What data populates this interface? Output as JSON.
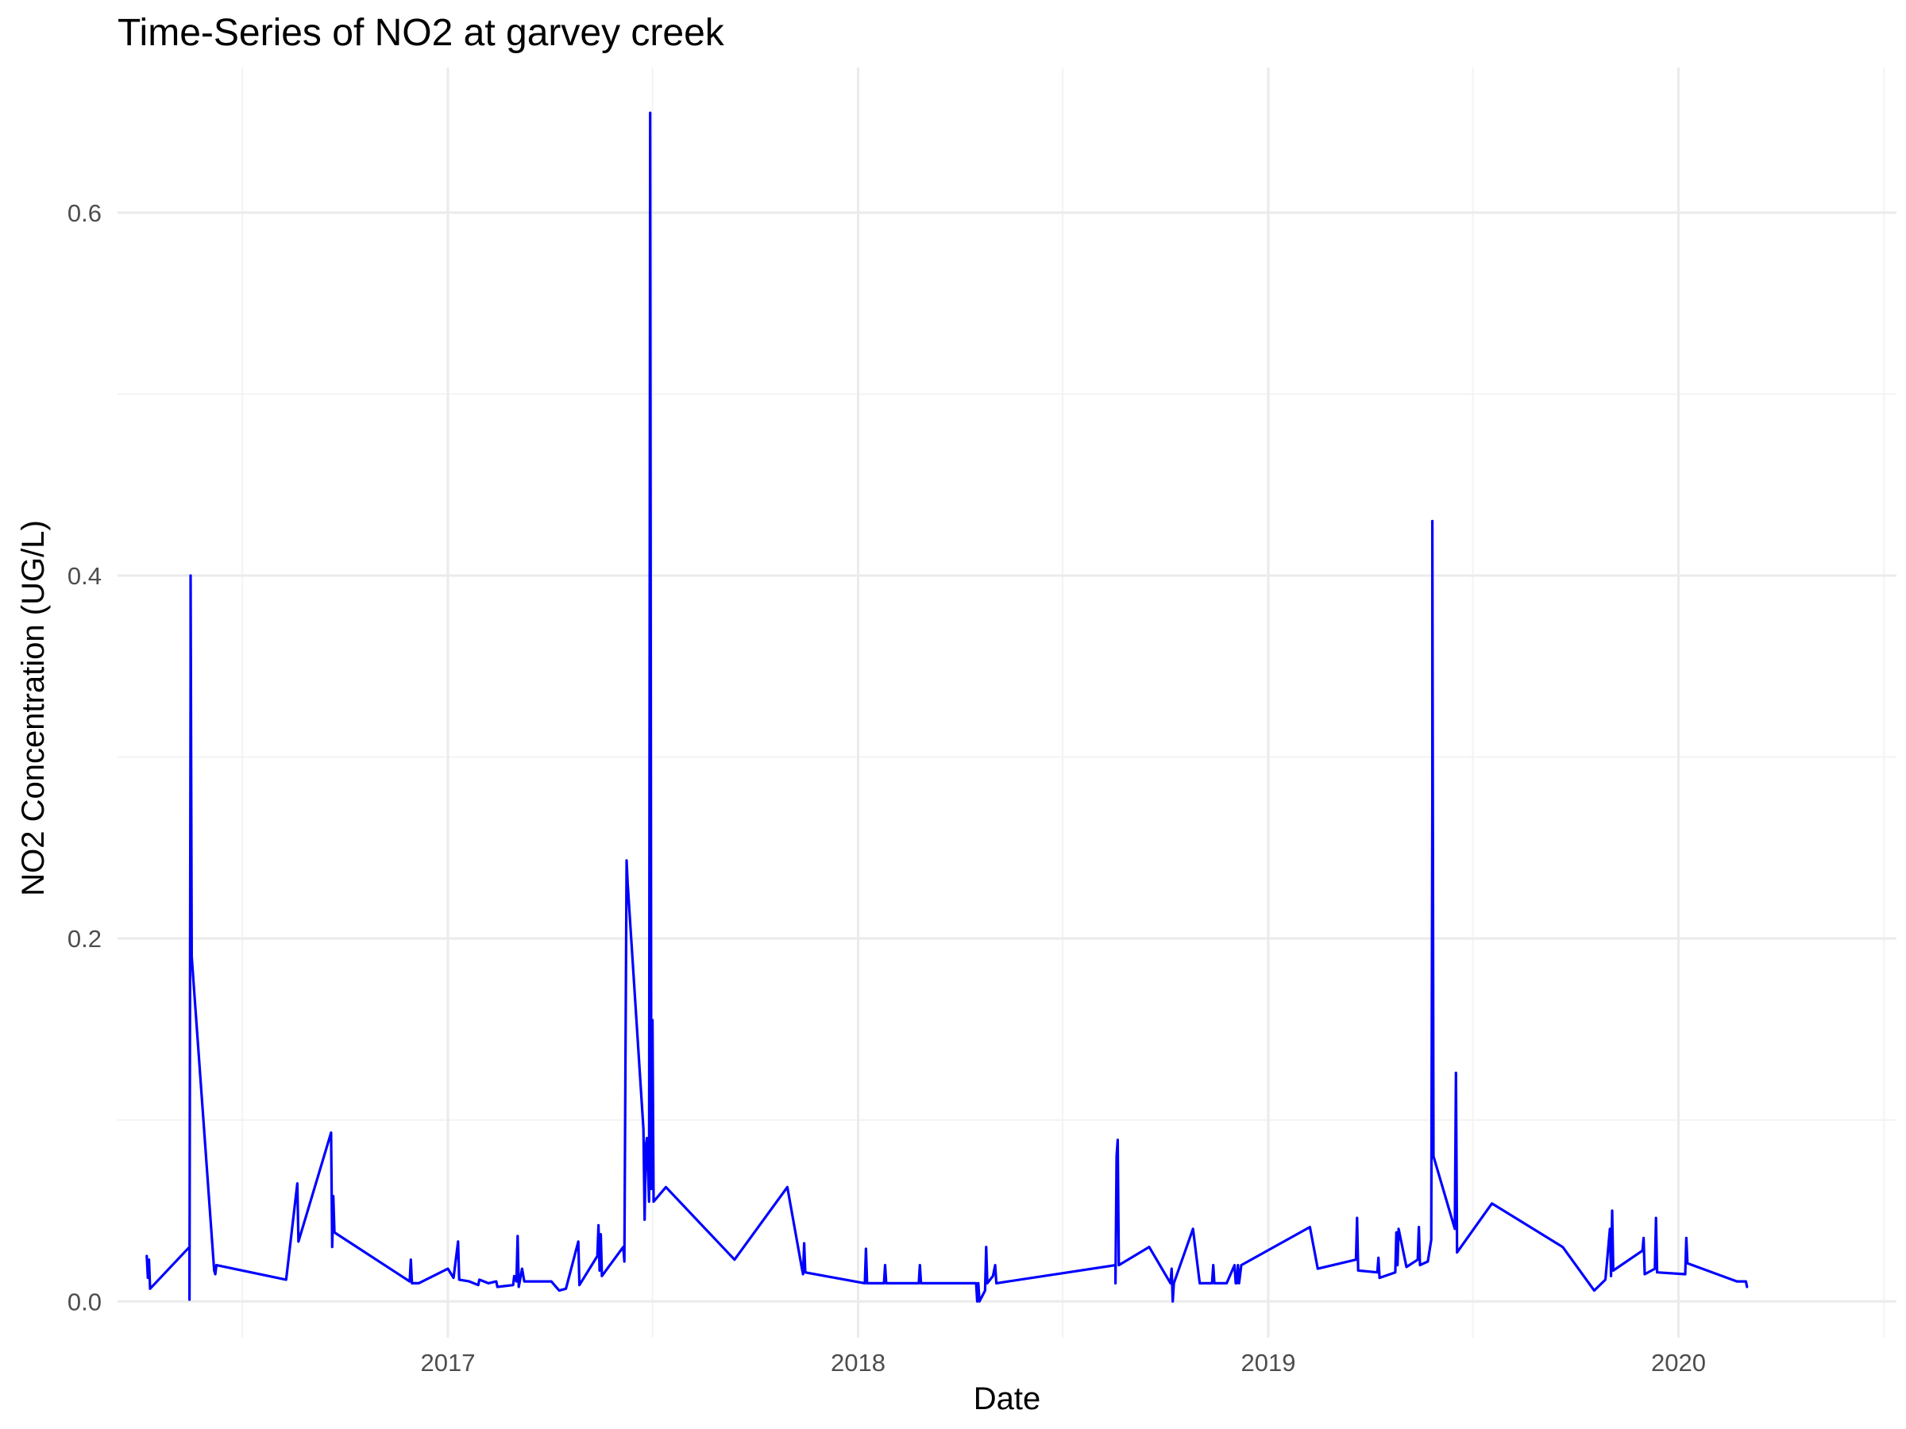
{
  "chart_data": {
    "type": "line",
    "title": "Time-Series of NO2 at garvey creek",
    "xlabel": "Date",
    "ylabel": "NO2 Concentration (UG/L)",
    "xlim": [
      "2016-03-13",
      "2020-07-13"
    ],
    "ylim": [
      -0.02,
      0.68
    ],
    "x_ticks": [
      "2017-01-01",
      "2018-01-01",
      "2019-01-01",
      "2020-01-01"
    ],
    "x_tick_labels": [
      "2017",
      "2018",
      "2019",
      "2020"
    ],
    "y_ticks": [
      0.0,
      0.2,
      0.4,
      0.6
    ],
    "y_tick_labels": [
      "0.0",
      "0.2",
      "0.4",
      "0.6"
    ],
    "grid": true,
    "line_color": "#0000FF",
    "series": [
      {
        "points": [
          [
            "2016-04-08",
            0.025
          ],
          [
            "2016-04-09",
            0.013
          ],
          [
            "2016-04-10",
            0.023
          ],
          [
            "2016-04-11",
            0.007
          ],
          [
            "2016-05-16",
            0.03
          ],
          [
            "2016-05-16",
            0.001
          ],
          [
            "2016-05-17",
            0.345
          ],
          [
            "2016-05-17",
            0.4
          ],
          [
            "2016-05-18",
            0.19
          ],
          [
            "2016-06-07",
            0.017
          ],
          [
            "2016-06-08",
            0.015
          ],
          [
            "2016-06-09",
            0.02
          ],
          [
            "2016-08-10",
            0.012
          ],
          [
            "2016-08-20",
            0.065
          ],
          [
            "2016-08-21",
            0.033
          ],
          [
            "2016-09-19",
            0.093
          ],
          [
            "2016-09-20",
            0.03
          ],
          [
            "2016-09-21",
            0.058
          ],
          [
            "2016-09-22",
            0.038
          ],
          [
            "2016-11-28",
            0.011
          ],
          [
            "2016-11-29",
            0.023
          ],
          [
            "2016-11-30",
            0.01
          ],
          [
            "2016-12-06",
            0.01
          ],
          [
            "2017-01-01",
            0.018
          ],
          [
            "2017-01-06",
            0.013
          ],
          [
            "2017-01-10",
            0.033
          ],
          [
            "2017-01-11",
            0.012
          ],
          [
            "2017-01-20",
            0.011
          ],
          [
            "2017-01-28",
            0.009
          ],
          [
            "2017-01-29",
            0.012
          ],
          [
            "2017-02-06",
            0.01
          ],
          [
            "2017-02-13",
            0.011
          ],
          [
            "2017-02-14",
            0.008
          ],
          [
            "2017-02-28",
            0.009
          ],
          [
            "2017-03-01",
            0.014
          ],
          [
            "2017-03-03",
            0.011
          ],
          [
            "2017-03-04",
            0.036
          ],
          [
            "2017-03-05",
            0.008
          ],
          [
            "2017-03-08",
            0.018
          ],
          [
            "2017-03-10",
            0.011
          ],
          [
            "2017-04-03",
            0.011
          ],
          [
            "2017-04-10",
            0.006
          ],
          [
            "2017-04-16",
            0.007
          ],
          [
            "2017-04-27",
            0.033
          ],
          [
            "2017-04-28",
            0.009
          ],
          [
            "2017-05-14",
            0.025
          ],
          [
            "2017-05-15",
            0.042
          ],
          [
            "2017-05-16",
            0.017
          ],
          [
            "2017-05-17",
            0.037
          ],
          [
            "2017-05-18",
            0.014
          ],
          [
            "2017-06-06",
            0.03
          ],
          [
            "2017-06-07",
            0.022
          ],
          [
            "2017-06-08",
            0.135
          ],
          [
            "2017-06-09",
            0.243
          ],
          [
            "2017-06-10",
            0.23
          ],
          [
            "2017-06-24",
            0.095
          ],
          [
            "2017-06-25",
            0.045
          ],
          [
            "2017-06-26",
            0.085
          ],
          [
            "2017-06-27",
            0.09
          ],
          [
            "2017-06-29",
            0.055
          ],
          [
            "2017-06-30",
            0.655
          ],
          [
            "2017-07-01",
            0.062
          ],
          [
            "2017-07-02",
            0.155
          ],
          [
            "2017-07-03",
            0.055
          ],
          [
            "2017-07-14",
            0.063
          ],
          [
            "2017-09-13",
            0.023
          ],
          [
            "2017-10-30",
            0.063
          ],
          [
            "2017-11-12",
            0.018
          ],
          [
            "2017-11-13",
            0.015
          ],
          [
            "2017-11-14",
            0.032
          ],
          [
            "2017-11-15",
            0.016
          ],
          [
            "2018-01-07",
            0.01
          ],
          [
            "2018-01-08",
            0.029
          ],
          [
            "2018-01-09",
            0.01
          ],
          [
            "2018-01-24",
            0.01
          ],
          [
            "2018-01-25",
            0.02
          ],
          [
            "2018-01-26",
            0.01
          ],
          [
            "2018-02-24",
            0.01
          ],
          [
            "2018-02-25",
            0.02
          ],
          [
            "2018-02-26",
            0.01
          ],
          [
            "2018-04-16",
            0.01
          ],
          [
            "2018-04-17",
            0.0
          ],
          [
            "2018-04-18",
            0.01
          ],
          [
            "2018-04-19",
            0.0
          ],
          [
            "2018-04-24",
            0.006
          ],
          [
            "2018-04-25",
            0.03
          ],
          [
            "2018-04-26",
            0.01
          ],
          [
            "2018-05-01",
            0.014
          ],
          [
            "2018-05-03",
            0.02
          ],
          [
            "2018-05-04",
            0.01
          ],
          [
            "2018-08-18",
            0.02
          ],
          [
            "2018-08-18",
            0.01
          ],
          [
            "2018-08-19",
            0.08
          ],
          [
            "2018-08-20",
            0.089
          ],
          [
            "2018-08-21",
            0.02
          ],
          [
            "2018-09-17",
            0.03
          ],
          [
            "2018-10-06",
            0.01
          ],
          [
            "2018-10-07",
            0.018
          ],
          [
            "2018-10-08",
            0.0
          ],
          [
            "2018-10-09",
            0.01
          ],
          [
            "2018-10-26",
            0.04
          ],
          [
            "2018-11-01",
            0.01
          ],
          [
            "2018-11-12",
            0.01
          ],
          [
            "2018-11-13",
            0.02
          ],
          [
            "2018-11-14",
            0.01
          ],
          [
            "2018-11-25",
            0.01
          ],
          [
            "2018-12-02",
            0.02
          ],
          [
            "2018-12-03",
            0.01
          ],
          [
            "2018-12-04",
            0.01
          ],
          [
            "2018-12-05",
            0.02
          ],
          [
            "2018-12-06",
            0.01
          ],
          [
            "2018-12-08",
            0.02
          ],
          [
            "2019-02-07",
            0.041
          ],
          [
            "2019-02-14",
            0.018
          ],
          [
            "2019-03-20",
            0.023
          ],
          [
            "2019-03-21",
            0.046
          ],
          [
            "2019-03-22",
            0.017
          ],
          [
            "2019-04-08",
            0.016
          ],
          [
            "2019-04-09",
            0.024
          ],
          [
            "2019-04-10",
            0.013
          ],
          [
            "2019-04-24",
            0.016
          ],
          [
            "2019-04-25",
            0.038
          ],
          [
            "2019-04-26",
            0.02
          ],
          [
            "2019-04-27",
            0.04
          ],
          [
            "2019-05-04",
            0.019
          ],
          [
            "2019-05-14",
            0.023
          ],
          [
            "2019-05-15",
            0.041
          ],
          [
            "2019-05-16",
            0.02
          ],
          [
            "2019-05-23",
            0.022
          ],
          [
            "2019-05-26",
            0.034
          ],
          [
            "2019-05-27",
            0.278
          ],
          [
            "2019-05-27",
            0.43
          ],
          [
            "2019-05-28",
            0.08
          ],
          [
            "2019-06-16",
            0.04
          ],
          [
            "2019-06-17",
            0.126
          ],
          [
            "2019-06-18",
            0.027
          ],
          [
            "2019-07-19",
            0.054
          ],
          [
            "2019-09-20",
            0.03
          ],
          [
            "2019-10-18",
            0.006
          ],
          [
            "2019-10-28",
            0.012
          ],
          [
            "2019-11-01",
            0.04
          ],
          [
            "2019-11-02",
            0.014
          ],
          [
            "2019-11-03",
            0.05
          ],
          [
            "2019-11-04",
            0.017
          ],
          [
            "2019-11-30",
            0.028
          ],
          [
            "2019-12-01",
            0.035
          ],
          [
            "2019-12-02",
            0.015
          ],
          [
            "2019-12-11",
            0.018
          ],
          [
            "2019-12-12",
            0.046
          ],
          [
            "2019-12-13",
            0.016
          ],
          [
            "2020-01-07",
            0.015
          ],
          [
            "2020-01-08",
            0.035
          ],
          [
            "2020-01-09",
            0.021
          ],
          [
            "2020-02-22",
            0.011
          ],
          [
            "2020-03-01",
            0.011
          ],
          [
            "2020-03-02",
            0.008
          ]
        ]
      }
    ]
  }
}
